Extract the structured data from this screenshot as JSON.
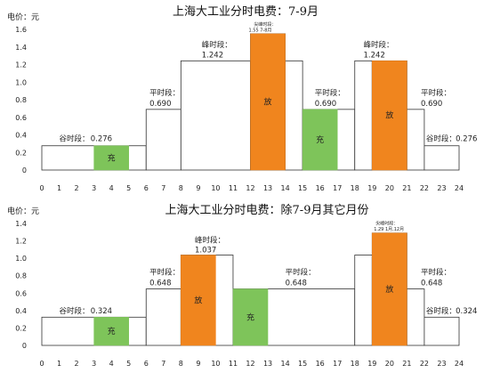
{
  "chart_data": [
    {
      "type": "bar",
      "title": "上海大工业分时电费：7-9月",
      "ylabel": "电价：元",
      "ylim": [
        0,
        1.6
      ],
      "yticks": [
        "0",
        "0.2",
        "0.4",
        "0.6",
        "0.8",
        "1.0",
        "1.2",
        "1.4",
        "1.6"
      ],
      "xticks": [
        "0",
        "1",
        "2",
        "3",
        "4",
        "5",
        "6",
        "7",
        "8",
        "9",
        "10",
        "11",
        "12",
        "13",
        "14",
        "15",
        "16",
        "17",
        "18",
        "19",
        "20",
        "21",
        "22",
        "23",
        "24"
      ],
      "xlim": [
        0,
        24
      ],
      "segments": [
        {
          "start": 0,
          "end": 6,
          "value": 0.276
        },
        {
          "start": 6,
          "end": 8,
          "value": 0.69
        },
        {
          "start": 8,
          "end": 12,
          "value": 1.242
        },
        {
          "start": 12,
          "end": 14,
          "value": 1.55
        },
        {
          "start": 14,
          "end": 15,
          "value": 1.242
        },
        {
          "start": 15,
          "end": 18,
          "value": 0.69
        },
        {
          "start": 18,
          "end": 19,
          "value": 1.242
        },
        {
          "start": 19,
          "end": 21,
          "value": 1.242
        },
        {
          "start": 21,
          "end": 22,
          "value": 0.69
        },
        {
          "start": 22,
          "end": 24,
          "value": 0.276
        }
      ],
      "charge_bars": [
        {
          "start": 3,
          "end": 5,
          "value": 0.276,
          "label": "充"
        },
        {
          "start": 15,
          "end": 17,
          "value": 0.69,
          "label": "充"
        }
      ],
      "discharge_bars": [
        {
          "start": 12,
          "end": 14,
          "value": 1.55,
          "label": "放"
        },
        {
          "start": 19,
          "end": 21,
          "value": 1.242,
          "label": "放"
        }
      ],
      "annotations": [
        {
          "text": "谷时段：",
          "x": 1.0,
          "y": 0.33,
          "anchor": "start",
          "size": "normal"
        },
        {
          "text": "0.276",
          "x": 2.8,
          "y": 0.33,
          "anchor": "start",
          "size": "normal"
        },
        {
          "text": "平时段：",
          "x": 6.2,
          "y": 0.85,
          "anchor": "start",
          "size": "normal"
        },
        {
          "text": "0.690",
          "x": 6.2,
          "y": 0.73,
          "anchor": "start",
          "size": "normal"
        },
        {
          "text": "峰时段：",
          "x": 9.2,
          "y": 1.4,
          "anchor": "start",
          "size": "normal"
        },
        {
          "text": "1.242",
          "x": 9.2,
          "y": 1.28,
          "anchor": "start",
          "size": "normal"
        },
        {
          "text": "尖峰时段：",
          "x": 12.2,
          "y": 1.64,
          "anchor": "start",
          "size": "small"
        },
        {
          "text": "1.55  7-8月",
          "x": 11.9,
          "y": 1.575,
          "anchor": "start",
          "size": "small"
        },
        {
          "text": "平时段：",
          "x": 15.7,
          "y": 0.85,
          "anchor": "start",
          "size": "normal"
        },
        {
          "text": "0.690",
          "x": 15.7,
          "y": 0.73,
          "anchor": "start",
          "size": "normal"
        },
        {
          "text": "峰时段：",
          "x": 18.5,
          "y": 1.4,
          "anchor": "start",
          "size": "normal"
        },
        {
          "text": "1.242",
          "x": 18.5,
          "y": 1.28,
          "anchor": "start",
          "size": "normal"
        },
        {
          "text": "平时段：",
          "x": 21.8,
          "y": 0.85,
          "anchor": "start",
          "size": "normal"
        },
        {
          "text": "0.690",
          "x": 21.8,
          "y": 0.73,
          "anchor": "start",
          "size": "normal"
        },
        {
          "text": "谷时段：",
          "x": 22.1,
          "y": 0.33,
          "anchor": "start",
          "size": "normal"
        },
        {
          "text": "0.276",
          "x": 23.8,
          "y": 0.33,
          "anchor": "start",
          "size": "normal"
        }
      ]
    },
    {
      "type": "bar",
      "title": "上海大工业分时电费：除7-9月其它月份",
      "ylabel": "电价：元",
      "ylim": [
        0,
        1.4
      ],
      "yticks": [
        "0",
        "0.2",
        "0.4",
        "0.6",
        "0.8",
        "1.0",
        "1.2",
        "1.4"
      ],
      "xticks": [
        "0",
        "1",
        "2",
        "3",
        "4",
        "5",
        "6",
        "7",
        "8",
        "9",
        "10",
        "11",
        "12",
        "13",
        "14",
        "15",
        "16",
        "17",
        "18",
        "19",
        "20",
        "21",
        "22",
        "23",
        "24"
      ],
      "xlim": [
        0,
        24
      ],
      "segments": [
        {
          "start": 0,
          "end": 6,
          "value": 0.324
        },
        {
          "start": 6,
          "end": 8,
          "value": 0.648
        },
        {
          "start": 8,
          "end": 11,
          "value": 1.037
        },
        {
          "start": 11,
          "end": 18,
          "value": 0.648
        },
        {
          "start": 18,
          "end": 19,
          "value": 1.037
        },
        {
          "start": 19,
          "end": 21,
          "value": 1.29
        },
        {
          "start": 21,
          "end": 22,
          "value": 0.648
        },
        {
          "start": 22,
          "end": 24,
          "value": 0.324
        }
      ],
      "charge_bars": [
        {
          "start": 3,
          "end": 5,
          "value": 0.324,
          "label": "充"
        },
        {
          "start": 11,
          "end": 13,
          "value": 0.648,
          "label": "充"
        }
      ],
      "discharge_bars": [
        {
          "start": 8,
          "end": 10,
          "value": 1.037,
          "label": "放"
        },
        {
          "start": 19,
          "end": 21,
          "value": 1.29,
          "label": "放"
        }
      ],
      "annotations": [
        {
          "text": "谷时段：",
          "x": 1.0,
          "y": 0.37,
          "anchor": "start",
          "size": "normal"
        },
        {
          "text": "0.324",
          "x": 2.8,
          "y": 0.37,
          "anchor": "start",
          "size": "normal"
        },
        {
          "text": "平时段：",
          "x": 6.2,
          "y": 0.81,
          "anchor": "start",
          "size": "normal"
        },
        {
          "text": "0.648",
          "x": 6.2,
          "y": 0.69,
          "anchor": "start",
          "size": "normal"
        },
        {
          "text": "峰时段：",
          "x": 8.8,
          "y": 1.18,
          "anchor": "start",
          "size": "normal"
        },
        {
          "text": "1.037",
          "x": 8.8,
          "y": 1.07,
          "anchor": "start",
          "size": "normal"
        },
        {
          "text": "平时段：",
          "x": 14.0,
          "y": 0.81,
          "anchor": "start",
          "size": "normal"
        },
        {
          "text": "0.648",
          "x": 14.0,
          "y": 0.69,
          "anchor": "start",
          "size": "normal"
        },
        {
          "text": "尖峰时段：",
          "x": 19.2,
          "y": 1.385,
          "anchor": "start",
          "size": "small"
        },
        {
          "text": "1.29  1月,12月",
          "x": 19.1,
          "y": 1.32,
          "anchor": "start",
          "size": "small"
        },
        {
          "text": "平时段：",
          "x": 21.8,
          "y": 0.81,
          "anchor": "start",
          "size": "normal"
        },
        {
          "text": "0.648",
          "x": 21.8,
          "y": 0.69,
          "anchor": "start",
          "size": "normal"
        },
        {
          "text": "谷时段：",
          "x": 22.1,
          "y": 0.37,
          "anchor": "start",
          "size": "normal"
        },
        {
          "text": "0.324",
          "x": 23.8,
          "y": 0.37,
          "anchor": "start",
          "size": "normal"
        }
      ]
    }
  ],
  "colors": {
    "charge": "#7ec45a",
    "discharge": "#f0851e",
    "outline": "#333333",
    "background": "#ffffff"
  }
}
